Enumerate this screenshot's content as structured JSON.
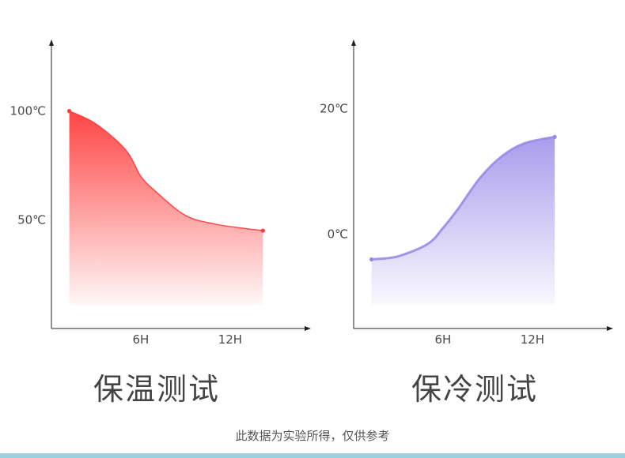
{
  "chart_data": [
    {
      "type": "area",
      "title": "保温测试",
      "x_ticks": [
        "6H",
        "12H"
      ],
      "y_ticks": [
        "100℃",
        "50℃"
      ],
      "x_tick_values": [
        6,
        12
      ],
      "y_tick_values": [
        100,
        50
      ],
      "xlim": [
        0,
        17
      ],
      "ylim": [
        0,
        130
      ],
      "x": [
        1.2,
        3,
        5,
        6,
        7,
        9,
        11,
        13,
        14.2
      ],
      "y": [
        100,
        94,
        82,
        70,
        63,
        52,
        48,
        46,
        45
      ],
      "color": "#ff3a3a"
    },
    {
      "type": "area",
      "title": "保冷测试",
      "x_ticks": [
        "6H",
        "12H"
      ],
      "y_ticks": [
        "20℃",
        "0℃"
      ],
      "x_tick_values": [
        6,
        12
      ],
      "y_tick_values": [
        20,
        0
      ],
      "xlim": [
        0,
        17
      ],
      "ylim": [
        -15,
        30
      ],
      "x": [
        1.2,
        3,
        5,
        6,
        7,
        8.5,
        10,
        11.5,
        13.5
      ],
      "y": [
        -4,
        -3.5,
        -1.5,
        1,
        4,
        9,
        12.5,
        14.5,
        15.5
      ],
      "color": "#9a8ae8"
    }
  ],
  "footnote": "此数据为实验所得，仅供参考"
}
